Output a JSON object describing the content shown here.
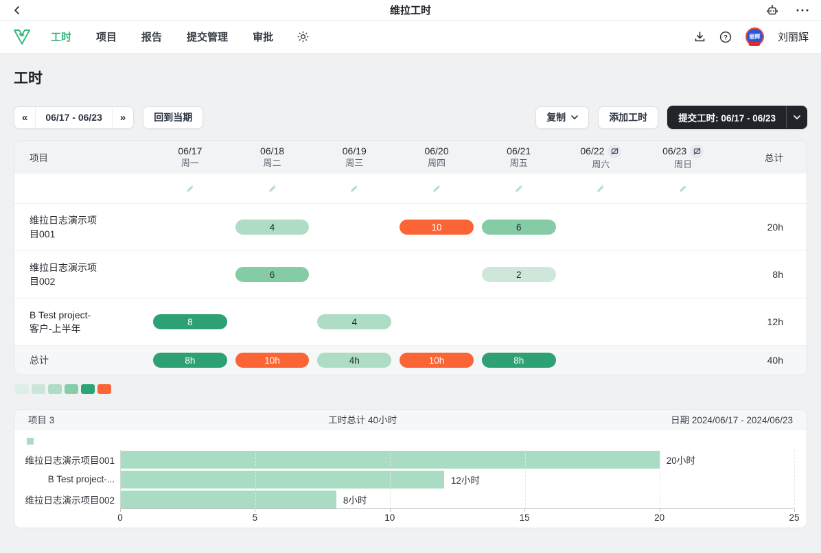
{
  "topbar": {
    "title": "维拉工时"
  },
  "nav": {
    "items": [
      {
        "label": "工时",
        "active": true
      },
      {
        "label": "项目",
        "active": false
      },
      {
        "label": "报告",
        "active": false
      },
      {
        "label": "提交管理",
        "active": false
      },
      {
        "label": "审批",
        "active": false
      }
    ],
    "user_name": "刘丽辉",
    "avatar_text": "丽辉"
  },
  "page": {
    "title": "工时"
  },
  "toolbar": {
    "prev": "«",
    "date_range": "06/17 - 06/23",
    "next": "»",
    "back_to_current": "回到当期",
    "copy": "复制",
    "add_hours": "添加工时",
    "submit": "提交工时: 06/17 - 06/23"
  },
  "table": {
    "project_header": "项目",
    "total_header": "总计",
    "days": [
      {
        "date": "06/17",
        "weekday": "周一",
        "off": false
      },
      {
        "date": "06/18",
        "weekday": "周二",
        "off": false
      },
      {
        "date": "06/19",
        "weekday": "周三",
        "off": false
      },
      {
        "date": "06/20",
        "weekday": "周四",
        "off": false
      },
      {
        "date": "06/21",
        "weekday": "周五",
        "off": false
      },
      {
        "date": "06/22",
        "weekday": "周六",
        "off": true
      },
      {
        "date": "06/23",
        "weekday": "周日",
        "off": true
      }
    ],
    "rows": [
      {
        "project_line1": "维拉日志演示项",
        "project_line2": "目001",
        "cells": [
          null,
          {
            "label": "4",
            "color": "#aedcc4",
            "inv": false
          },
          null,
          {
            "label": "10",
            "color": "#fb6434",
            "inv": true
          },
          {
            "label": "6",
            "color": "#85cba6",
            "inv": false
          },
          null,
          null
        ],
        "total": "20h"
      },
      {
        "project_line1": "维拉日志演示项",
        "project_line2": "目002",
        "cells": [
          null,
          {
            "label": "6",
            "color": "#85cba6",
            "inv": false
          },
          null,
          null,
          {
            "label": "2",
            "color": "#cfe7da",
            "inv": false
          },
          null,
          null
        ],
        "total": "8h"
      },
      {
        "project_line1": "B Test project-",
        "project_line2": "客户-上半年",
        "cells": [
          {
            "label": "8",
            "color": "#2da173",
            "inv": true
          },
          null,
          {
            "label": "4",
            "color": "#aedcc4",
            "inv": false
          },
          null,
          null,
          null,
          null
        ],
        "total": "12h"
      }
    ],
    "summary": {
      "label": "总计",
      "cells": [
        {
          "label": "8h",
          "color": "#2da173",
          "inv": true
        },
        {
          "label": "10h",
          "color": "#fb6434",
          "inv": true
        },
        {
          "label": "4h",
          "color": "#aedcc4",
          "inv": false
        },
        {
          "label": "10h",
          "color": "#fb6434",
          "inv": true
        },
        {
          "label": "8h",
          "color": "#2da173",
          "inv": true
        },
        null,
        null
      ],
      "total": "40h"
    }
  },
  "legend_colors": [
    "#dceee5",
    "#cbe6d8",
    "#aedcc4",
    "#87cda9",
    "#2da473",
    "#fb6434"
  ],
  "colors": {
    "accent": "#35b37c",
    "overtime": "#fb6434",
    "dark_button": "#212529"
  },
  "chart_panel": {
    "project_label": "项目 3",
    "total_label": "工时总计 40小时",
    "date_label": "日期 2024/06/17 - 2024/06/23"
  },
  "chart_data": {
    "type": "bar",
    "orientation": "horizontal",
    "categories": [
      "维拉日志演示项目001",
      "B Test project-...",
      "维拉日志演示项目002"
    ],
    "values": [
      20,
      12,
      8
    ],
    "value_labels": [
      "20小时",
      "12小时",
      "8小时"
    ],
    "xlim": [
      0,
      25
    ],
    "xticks": [
      0,
      5,
      10,
      15,
      20,
      25
    ],
    "bar_color": "#a9dcc3",
    "grid": "dashed-vertical",
    "legend": "single unnamed series swatch, top-left",
    "title": "",
    "xlabel": "",
    "ylabel": ""
  }
}
